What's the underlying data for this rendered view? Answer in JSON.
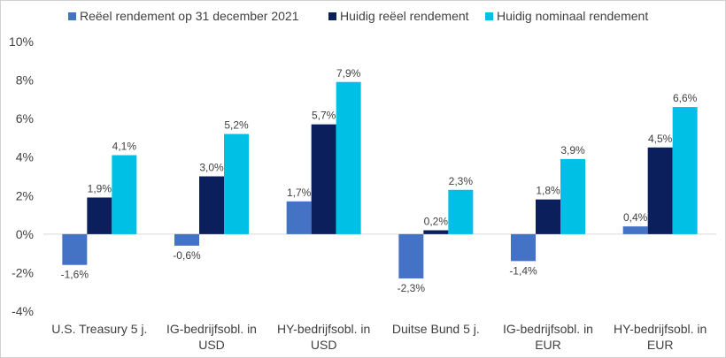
{
  "chart_data": {
    "type": "bar",
    "categories": [
      [
        "U.S. Treasury 5 j."
      ],
      [
        "IG-bedrijfsobl. in",
        "USD"
      ],
      [
        "HY-bedrijfsobl. in",
        "USD"
      ],
      [
        "Duitse Bund 5 j."
      ],
      [
        "IG-bedrijfsobl. in",
        "EUR"
      ],
      [
        "HY-bedrijfsobl. in",
        "EUR"
      ]
    ],
    "series": [
      {
        "name": "Reëel rendement op 31 december 2021",
        "color": "#4472c4",
        "values": [
          -1.6,
          -0.6,
          1.7,
          -2.3,
          -1.4,
          0.4
        ],
        "labels": [
          "-1,6%",
          "-0,6%",
          "1,7%",
          "-2,3%",
          "-1,4%",
          "0,4%"
        ]
      },
      {
        "name": "Huidig reëel rendement",
        "color": "#0b1f5c",
        "values": [
          1.9,
          3.0,
          5.7,
          0.2,
          1.8,
          4.5
        ],
        "labels": [
          "1,9%",
          "3,0%",
          "5,7%",
          "0,2%",
          "1,8%",
          "4,5%"
        ]
      },
      {
        "name": "Huidig nominaal rendement",
        "color": "#00c0e6",
        "values": [
          4.1,
          5.2,
          7.9,
          2.3,
          3.9,
          6.6
        ],
        "labels": [
          "4,1%",
          "5,2%",
          "7,9%",
          "2,3%",
          "3,9%",
          "6,6%"
        ]
      }
    ],
    "yticks": [
      10,
      8,
      6,
      4,
      2,
      0,
      -2,
      -4
    ],
    "ytick_labels": [
      "10%",
      "8%",
      "6%",
      "4%",
      "2%",
      "0%",
      "-2%",
      "-4%"
    ],
    "ylim": [
      -4,
      10
    ],
    "legend_position": "top",
    "grid": false
  }
}
